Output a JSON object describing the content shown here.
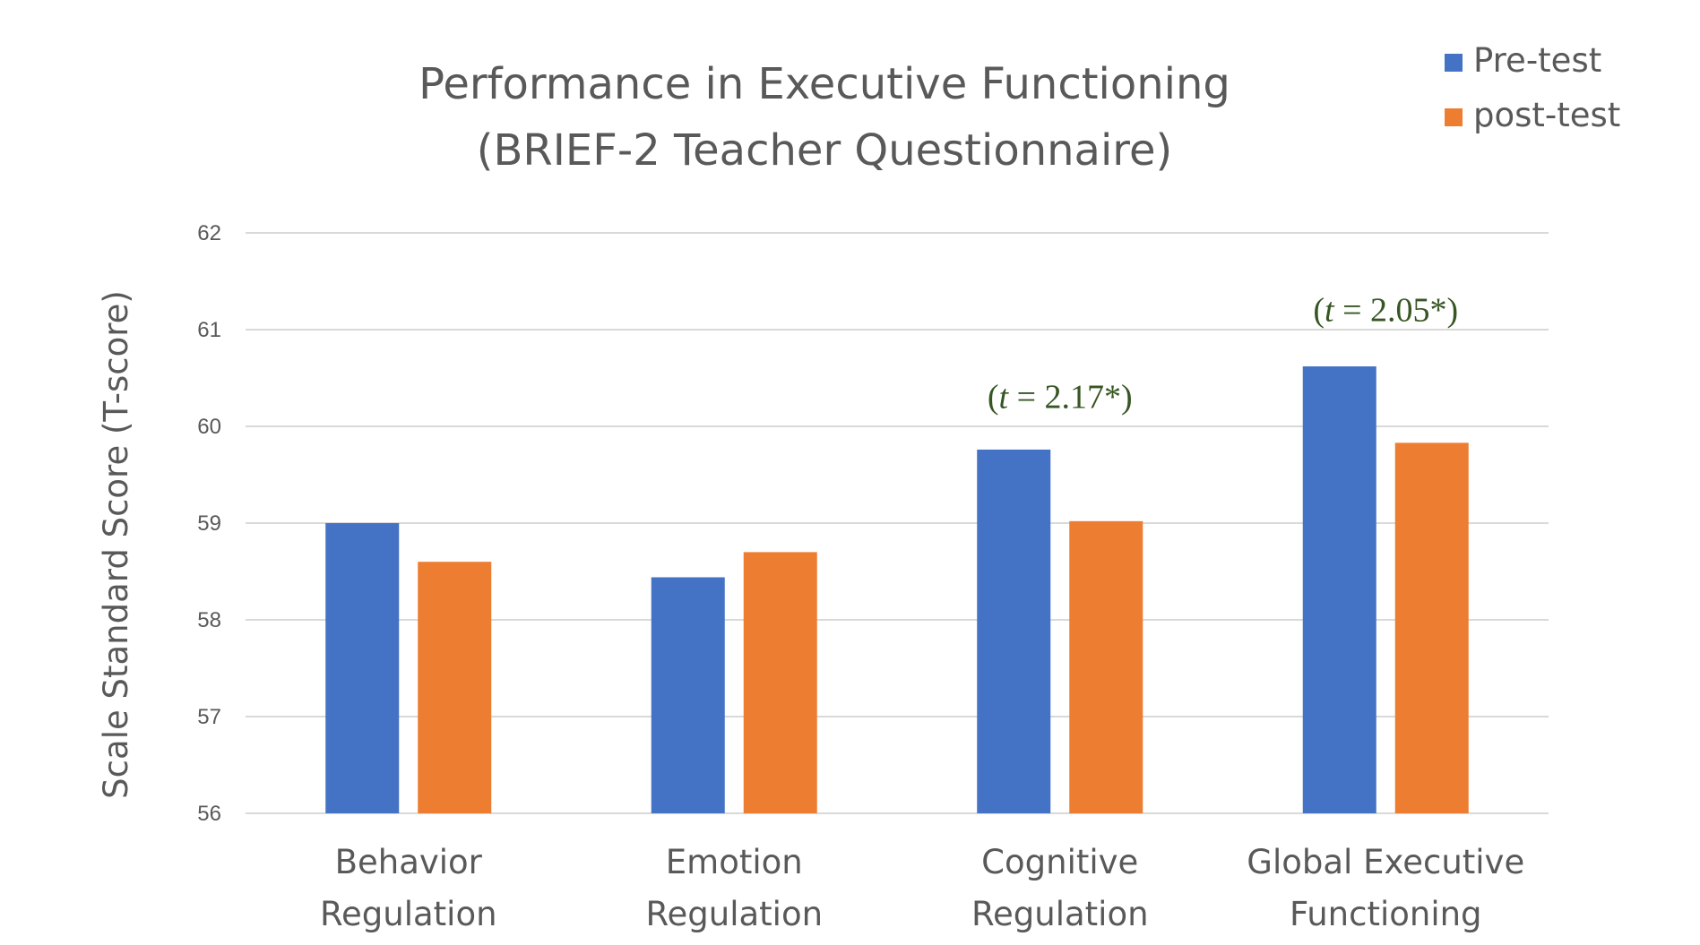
{
  "chart_data": {
    "type": "bar",
    "title_lines": [
      "Performance in Executive Functioning",
      "(BRIEF-2 Teacher Questionnaire)"
    ],
    "ylabel": "Scale Standard Score (T-score)",
    "xlabel": "",
    "ylim": [
      56,
      62
    ],
    "yticks": [
      56,
      57,
      58,
      59,
      60,
      61,
      62
    ],
    "grid": true,
    "legend_position": "top-right",
    "categories": [
      [
        "Behavior",
        "Regulation"
      ],
      [
        "Emotion",
        "Regulation"
      ],
      [
        "Cognitive",
        "Regulation"
      ],
      [
        "Global Executive",
        "Functioning"
      ]
    ],
    "series": [
      {
        "name": "Pre-test",
        "color": "#4472C4",
        "values": [
          59.0,
          58.44,
          59.76,
          60.62
        ]
      },
      {
        "name": "post-test",
        "color": "#ED7D31",
        "values": [
          58.6,
          58.7,
          59.02,
          59.83
        ]
      }
    ],
    "annotations": [
      {
        "category_index": 2,
        "prefix": "(",
        "italic": "t",
        "rest": " = 2.17*)",
        "y": 60.3
      },
      {
        "category_index": 3,
        "prefix": "(",
        "italic": "t",
        "rest": " = 2.05*)",
        "y": 61.2
      }
    ],
    "colors": {
      "grid": "#D9D9D9",
      "text": "#595959",
      "annotation": "#375623"
    }
  }
}
